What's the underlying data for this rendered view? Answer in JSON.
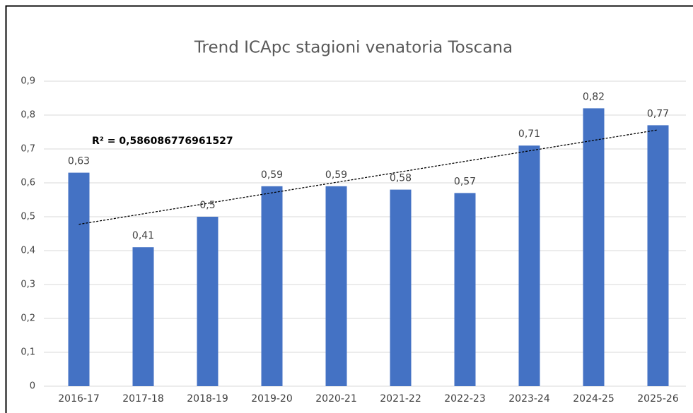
{
  "chart_data": {
    "type": "bar",
    "title": "Trend ICApc stagioni venatoria Toscana",
    "categories": [
      "2016-17",
      "2017-18",
      "2018-19",
      "2019-20",
      "2020-21",
      "2021-22",
      "2022-23",
      "2023-24",
      "2024-25",
      "2025-26"
    ],
    "values": [
      0.63,
      0.41,
      0.5,
      0.59,
      0.59,
      0.58,
      0.57,
      0.71,
      0.82,
      0.77
    ],
    "value_labels": [
      "0,63",
      "0,41",
      "0,5",
      "0,59",
      "0,59",
      "0,58",
      "0,57",
      "0,71",
      "0,82",
      "0,77"
    ],
    "color": "#4472c4",
    "ylim": [
      0,
      0.9
    ],
    "yticks": [
      0,
      {
        "value": 0.1,
        "label": "0,1"
      },
      {
        "value": 0.2,
        "label": "0,2"
      },
      {
        "value": 0.3,
        "label": "0,3"
      },
      {
        "value": 0.4,
        "label": "0,4"
      },
      {
        "value": 0.5,
        "label": "0,5"
      },
      {
        "value": 0.6,
        "label": "0,6"
      },
      {
        "value": 0.7,
        "label": "0,7"
      },
      {
        "value": 0.8,
        "label": "0,8"
      },
      {
        "value": 0.9,
        "label": "0,9"
      }
    ],
    "grid": true,
    "trendline": "linear",
    "annotation": "R² = 0,586086776961527"
  }
}
